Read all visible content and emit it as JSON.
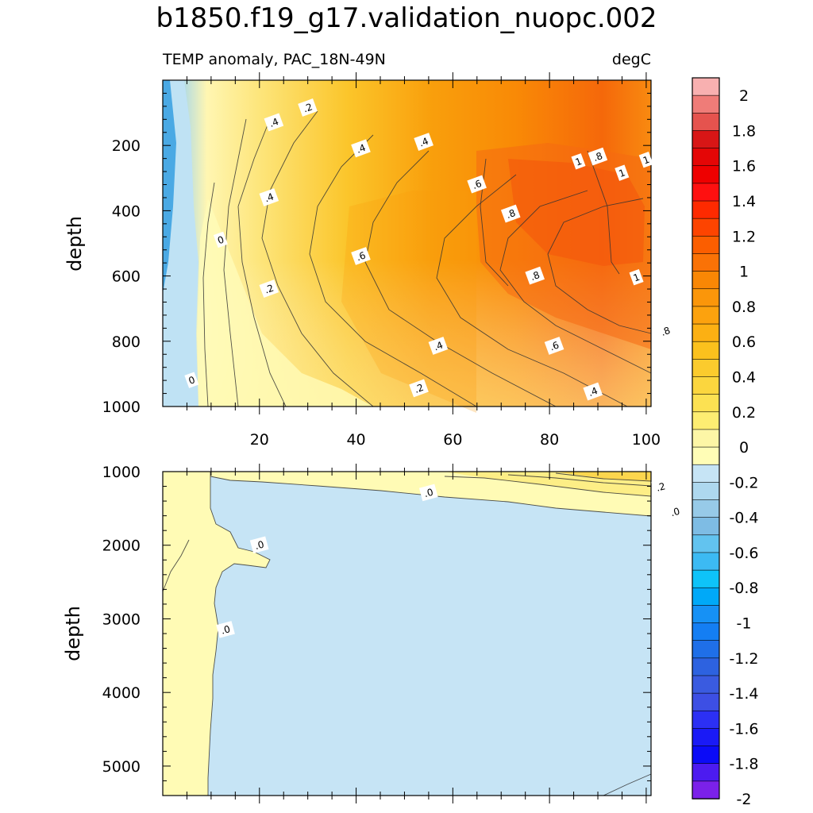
{
  "chart_data": [
    {
      "type": "contour",
      "panel": "upper",
      "title": "b1850.f19_g17.validation_nuopc.002",
      "subtitle_left": "TEMP anomaly, PAC_18N-49N",
      "subtitle_right": "degC",
      "xlabel": "",
      "ylabel": "depth",
      "xlim": [
        0,
        101
      ],
      "ylim": [
        1000,
        0
      ],
      "xticks": [
        "20",
        "40",
        "60",
        "80",
        "100"
      ],
      "yticks": [
        "200",
        "400",
        "600",
        "800",
        "1000"
      ],
      "contour_labels": [
        {
          "text": ".2",
          "x": 30,
          "y": 85
        },
        {
          "text": ".4",
          "x": 23,
          "y": 130
        },
        {
          "text": ".4",
          "x": 41,
          "y": 210
        },
        {
          "text": ".4",
          "x": 54,
          "y": 190
        },
        {
          "text": ".4",
          "x": 22,
          "y": 360
        },
        {
          "text": "0",
          "x": 12,
          "y": 490
        },
        {
          "text": ".6",
          "x": 65,
          "y": 320
        },
        {
          "text": ".8",
          "x": 72,
          "y": 410
        },
        {
          "text": ".6",
          "x": 41,
          "y": 540
        },
        {
          "text": ".2",
          "x": 22,
          "y": 640
        },
        {
          "text": "1",
          "x": 86,
          "y": 250
        },
        {
          "text": ".8",
          "x": 90,
          "y": 235
        },
        {
          "text": "1",
          "x": 95,
          "y": 285
        },
        {
          "text": "1",
          "x": 100,
          "y": 245
        },
        {
          "text": ".8",
          "x": 77,
          "y": 600
        },
        {
          "text": "1",
          "x": 98,
          "y": 605
        },
        {
          "text": ".8",
          "x": 104,
          "y": 770
        },
        {
          "text": ".4",
          "x": 57,
          "y": 815
        },
        {
          "text": ".6",
          "x": 81,
          "y": 815
        },
        {
          "text": "0",
          "x": 6,
          "y": 920
        },
        {
          "text": ".2",
          "x": 53,
          "y": 945
        },
        {
          "text": ".4",
          "x": 89,
          "y": 955
        }
      ]
    },
    {
      "type": "contour",
      "panel": "lower",
      "xlabel": "",
      "ylabel": "depth",
      "xlim": [
        0,
        101
      ],
      "ylim": [
        5400,
        1000
      ],
      "xticks": [],
      "yticks": [
        "1000",
        "2000",
        "3000",
        "4000",
        "5000"
      ],
      "contour_labels": [
        {
          "text": ".0",
          "x": 55,
          "y": 1290
        },
        {
          "text": ".2",
          "x": 103,
          "y": 1210
        },
        {
          "text": ".0",
          "x": 106,
          "y": 1550
        },
        {
          "text": ".0",
          "x": 20,
          "y": 2000
        },
        {
          "text": ".0",
          "x": 13,
          "y": 3150
        }
      ]
    }
  ],
  "colorbar": {
    "labels": [
      "2",
      "1.8",
      "1.6",
      "1.4",
      "1.2",
      "1",
      "0.8",
      "0.6",
      "0.4",
      "0.2",
      "0",
      "-0.2",
      "-0.4",
      "-0.6",
      "-0.8",
      "-1",
      "-1.2",
      "-1.4",
      "-1.6",
      "-1.8",
      "-2"
    ],
    "colors": [
      "#f8b0b0",
      "#ef7c78",
      "#e5534e",
      "#d81616",
      "#e40606",
      "#ee0000",
      "#fe1010",
      "#fe2a00",
      "#fd4400",
      "#fb5e00",
      "#fa7206",
      "#f98705",
      "#fb960a",
      "#fca20e",
      "#fcb013",
      "#fbc11d",
      "#fbcb2d",
      "#fbd63e",
      "#fce152",
      "#fded72",
      "#fdf6a6",
      "#fffdb6",
      "#c6e4f5",
      "#aed8ef",
      "#97cae8",
      "#7ebce4",
      "#62c3ef",
      "#3cbaf3",
      "#0ec3f9",
      "#00a9f8",
      "#1691f5",
      "#147ef3",
      "#1f6fe8",
      "#2d62e0",
      "#3a5be0",
      "#3d4fe4",
      "#2c30f4",
      "#1a1af6",
      "#0b0bf7",
      "#4c1bf0",
      "#7b21e9"
    ]
  }
}
